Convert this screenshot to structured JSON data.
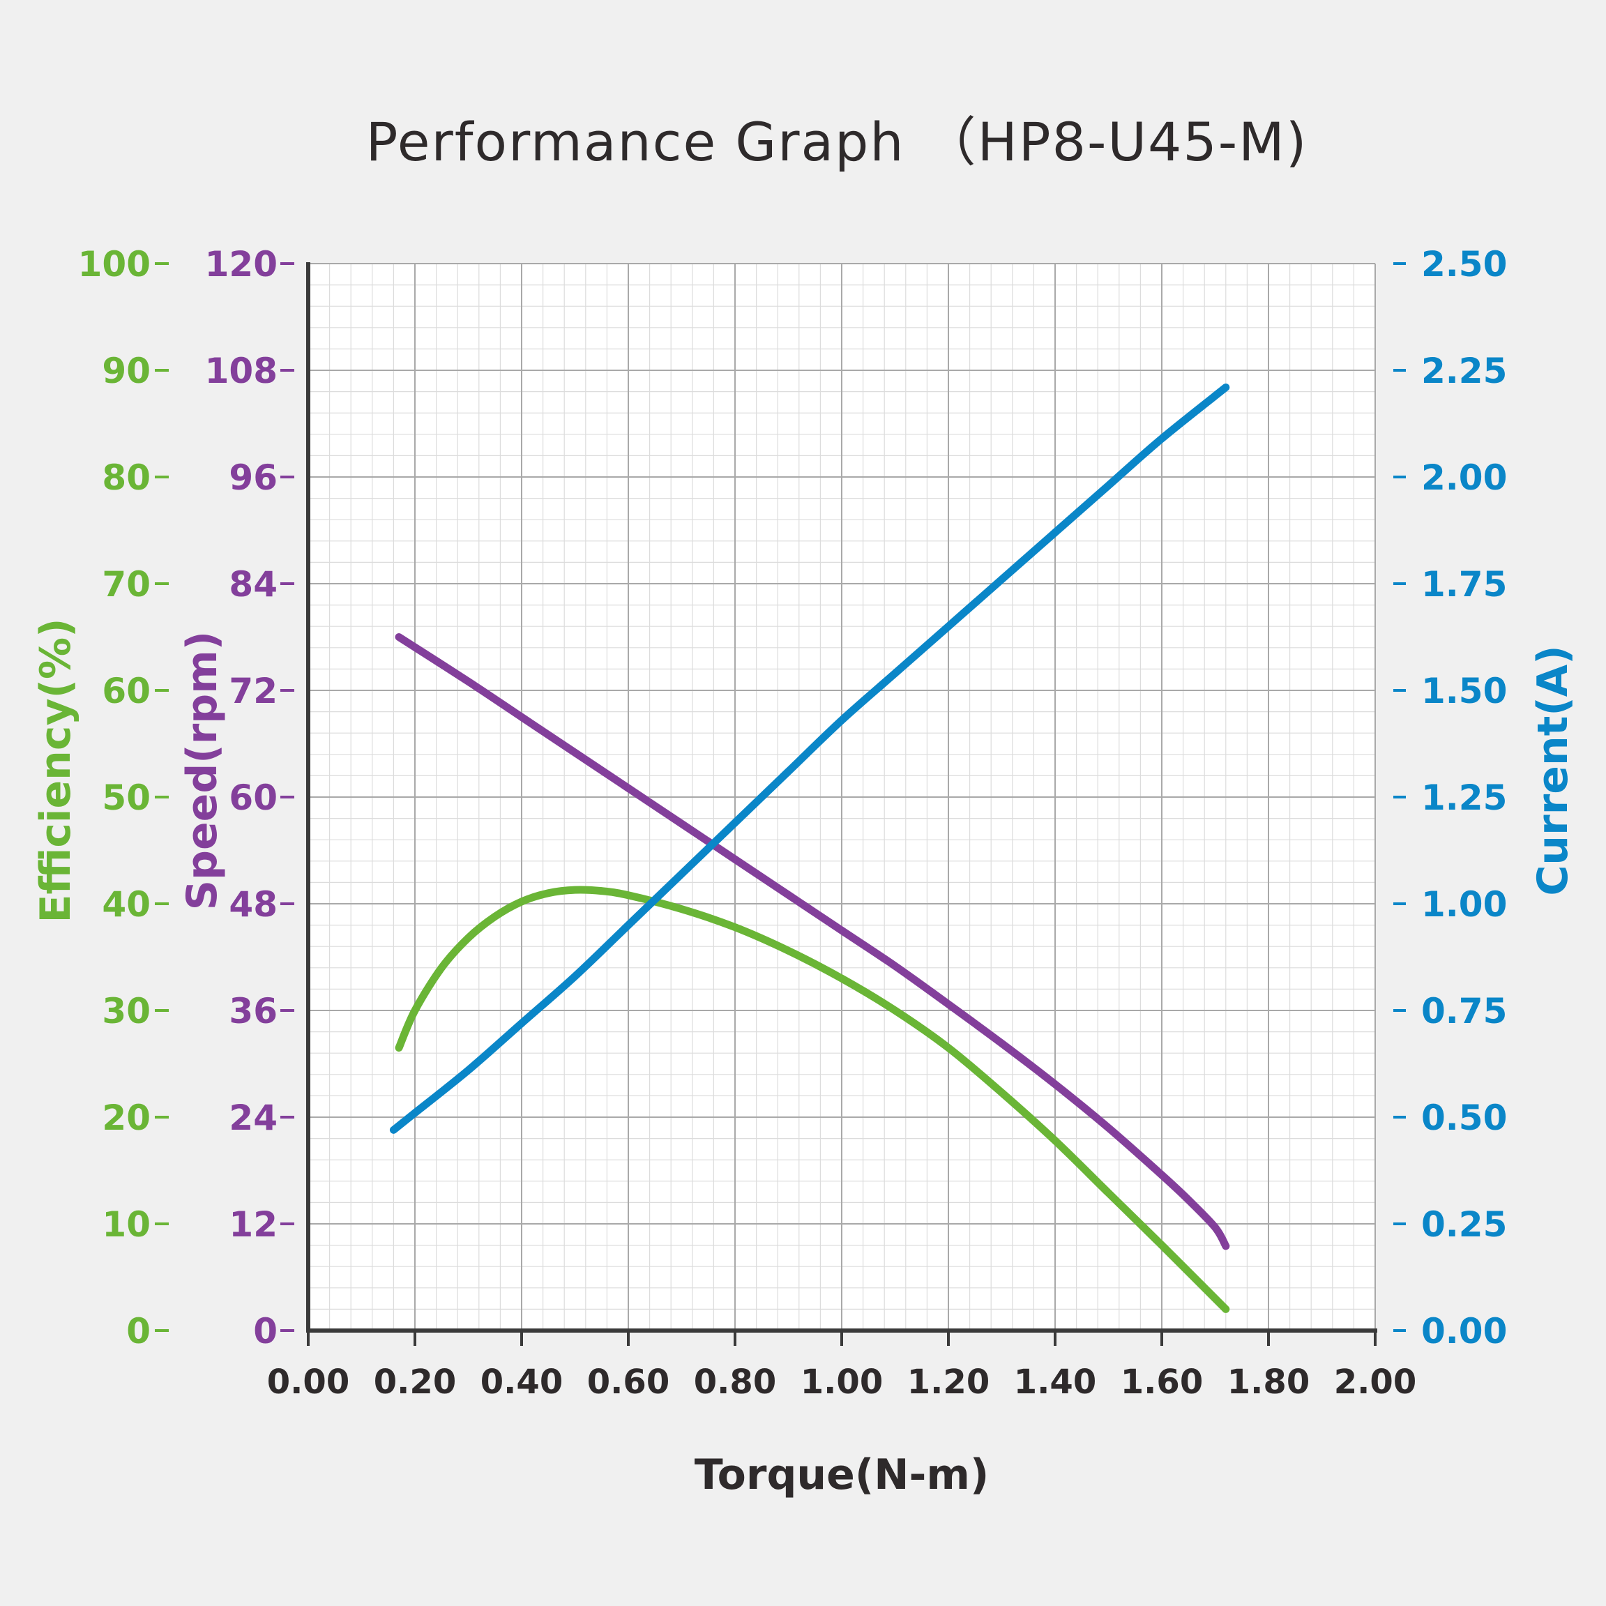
{
  "chart_data": {
    "type": "line",
    "title": "Performance Graph （HP8-U45-M)",
    "xlabel": "Torque(N-m)",
    "xlim": [
      0,
      2.0
    ],
    "x_ticks": [
      "0.00",
      "0.20",
      "0.40",
      "0.60",
      "0.80",
      "1.00",
      "1.20",
      "1.40",
      "1.60",
      "1.80",
      "2.00"
    ],
    "grid": true,
    "axes": {
      "efficiency": {
        "label": "Efficiency(%)",
        "range": [
          0,
          100
        ],
        "ticks": [
          "0",
          "10",
          "20",
          "30",
          "40",
          "50",
          "60",
          "70",
          "80",
          "90",
          "100"
        ],
        "color": "#6ab536"
      },
      "speed": {
        "label": "Speed(rpm)",
        "range": [
          0,
          120
        ],
        "ticks": [
          "0",
          "12",
          "24",
          "36",
          "48",
          "60",
          "72",
          "84",
          "96",
          "108",
          "120"
        ],
        "color": "#833f9b"
      },
      "current": {
        "label": "Current(A)",
        "range": [
          0,
          2.5
        ],
        "ticks": [
          "0.00",
          "0.25",
          "0.50",
          "0.75",
          "1.00",
          "1.25",
          "1.50",
          "1.75",
          "2.00",
          "2.25",
          "2.50"
        ],
        "color": "#0a86c8"
      }
    },
    "series": [
      {
        "axis": "speed",
        "color": "#833f9b",
        "x": [
          0.17,
          0.3,
          0.4,
          0.5,
          0.6,
          0.7,
          0.8,
          0.9,
          1.0,
          1.1,
          1.2,
          1.3,
          1.4,
          1.5,
          1.6,
          1.65,
          1.7,
          1.72
        ],
        "y": [
          78,
          73,
          69,
          65,
          61,
          57,
          53,
          49,
          45,
          41,
          36.7,
          32.3,
          27.7,
          22.8,
          17.5,
          14.7,
          11.6,
          9.5
        ]
      },
      {
        "axis": "efficiency",
        "color": "#6ab536",
        "x": [
          0.17,
          0.2,
          0.25,
          0.3,
          0.35,
          0.4,
          0.45,
          0.5,
          0.55,
          0.6,
          0.7,
          0.8,
          0.9,
          1.0,
          1.1,
          1.2,
          1.3,
          1.4,
          1.5,
          1.6,
          1.72
        ],
        "y": [
          26.5,
          30,
          34,
          36.8,
          38.8,
          40.2,
          41.0,
          41.3,
          41.2,
          40.8,
          39.5,
          37.8,
          35.6,
          33.0,
          30.0,
          26.5,
          22.3,
          17.8,
          12.9,
          8.0,
          2.0
        ]
      },
      {
        "axis": "current",
        "color": "#0a86c8",
        "x": [
          0.16,
          0.2,
          0.3,
          0.4,
          0.5,
          0.6,
          0.7,
          0.8,
          0.9,
          1.0,
          1.1,
          1.2,
          1.3,
          1.4,
          1.5,
          1.6,
          1.72
        ],
        "y": [
          0.47,
          0.51,
          0.61,
          0.72,
          0.83,
          0.95,
          1.07,
          1.19,
          1.31,
          1.43,
          1.54,
          1.65,
          1.76,
          1.87,
          1.98,
          2.09,
          2.21
        ]
      }
    ]
  }
}
